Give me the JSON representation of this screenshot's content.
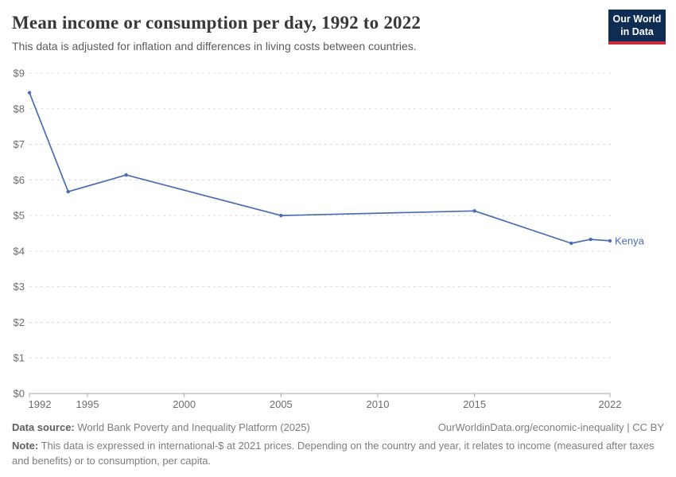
{
  "header": {
    "title": "Mean income or consumption per day, 1992 to 2022",
    "subtitle": "This data is adjusted for inflation and differences in living costs between countries.",
    "logo": {
      "line1": "Our World",
      "line2": "in Data",
      "bg_color": "#0f2d52",
      "stripe_color": "#cb2d3e"
    }
  },
  "chart_data": {
    "type": "line",
    "title": "Mean income or consumption per day, 1992 to 2022",
    "xlabel": "",
    "ylabel": "",
    "x": [
      1992,
      1994,
      1997,
      2005,
      2015,
      2020,
      2021,
      2022
    ],
    "series": [
      {
        "name": "Kenya",
        "values": [
          8.45,
          5.67,
          6.14,
          5.0,
          5.13,
          4.22,
          4.33,
          4.29
        ],
        "color": "#4a6cb2"
      }
    ],
    "xlim": [
      1992,
      2022
    ],
    "ylim": [
      0,
      9
    ],
    "xticks": [
      1992,
      1995,
      2000,
      2005,
      2010,
      2015,
      2022
    ],
    "yticks": [
      0,
      1,
      2,
      3,
      4,
      5,
      6,
      7,
      8,
      9
    ],
    "ytick_prefix": "$",
    "grid": "horizontal-dashed",
    "legend_position": "end-of-line-label",
    "end_label": "Kenya",
    "colors": {
      "line": "#4a6cb2",
      "grid": "#dcdcdc",
      "axis": "#a5a5a5",
      "tick_text": "#6d6d6d"
    }
  },
  "footer": {
    "source_label": "Data source:",
    "source_text": " World Bank Poverty and Inequality Platform (2025)",
    "link_text": "OurWorldinData.org/economic-inequality | CC BY",
    "note_label": "Note:",
    "note_text": " This data is expressed in international-$ at 2021 prices. Depending on the country and year, it relates to income (measured after taxes and benefits) or to consumption, per capita."
  }
}
